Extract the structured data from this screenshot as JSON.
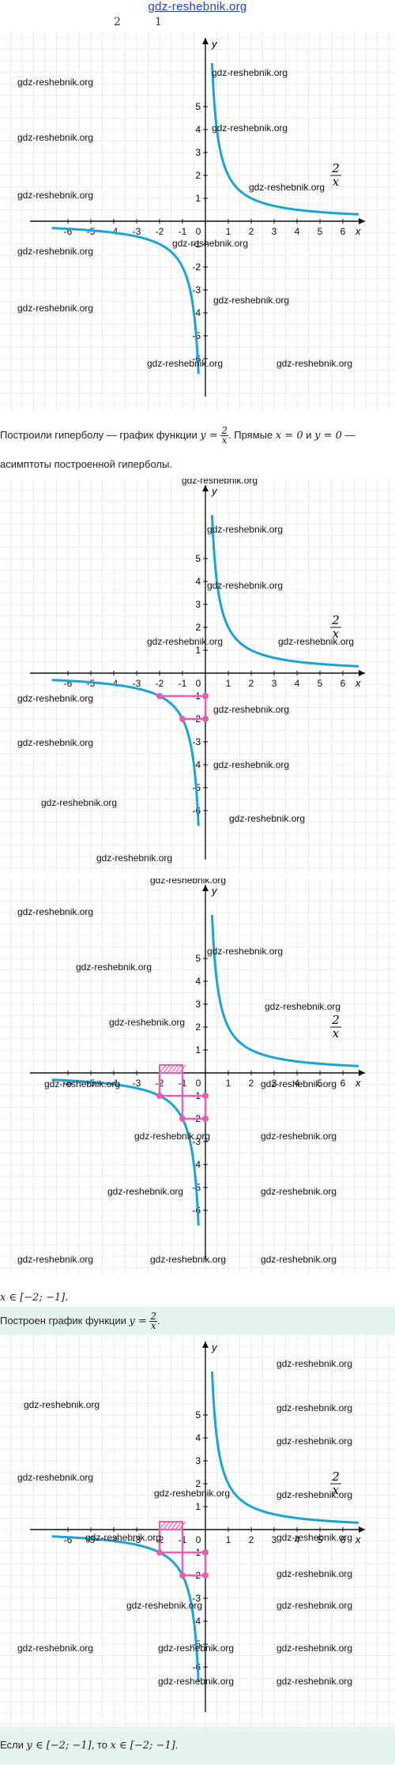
{
  "header": {
    "site": "gdz-reshebnik.org",
    "frac_numbers": [
      "2",
      "1"
    ]
  },
  "watermark": "gdz-reshebnik.org",
  "graph": {
    "x_label": "x",
    "y_label": "y",
    "x_ticks": [
      "-6",
      "-5",
      "-4",
      "-3",
      "-2",
      "-1",
      "0",
      "1",
      "2",
      "3",
      "4",
      "5",
      "6"
    ],
    "y_ticks_pos": [
      "1",
      "2",
      "3",
      "4",
      "5"
    ],
    "y_ticks_neg": [
      "-1",
      "-2",
      "-3",
      "-4",
      "-5",
      "-6"
    ],
    "fn_num": "2",
    "fn_den": "x",
    "curve_color": "#1aa3d6",
    "highlight_color": "#e75fb5",
    "grid_color": "#dcdcdc"
  },
  "texts": {
    "t1_a": "Построили гиперболу — график функции ",
    "t1_b": ". Прямые ",
    "t1_c": " и ",
    "t1_d": " —",
    "t1_line2": "асимптоты построенной гиперболы.",
    "x_eq0": "x = 0",
    "y_eq0": "y = 0",
    "y_eq": "y =",
    "answer_interval": "x ∈ [−2; −1].",
    "built_a": "Построен график функции ",
    "built_b": ".",
    "final_a": "Если ",
    "final_y": "y ∈ [−2; −1]",
    "final_b": ", то ",
    "final_x": "x ∈ [−2; −1]",
    "final_c": "."
  }
}
